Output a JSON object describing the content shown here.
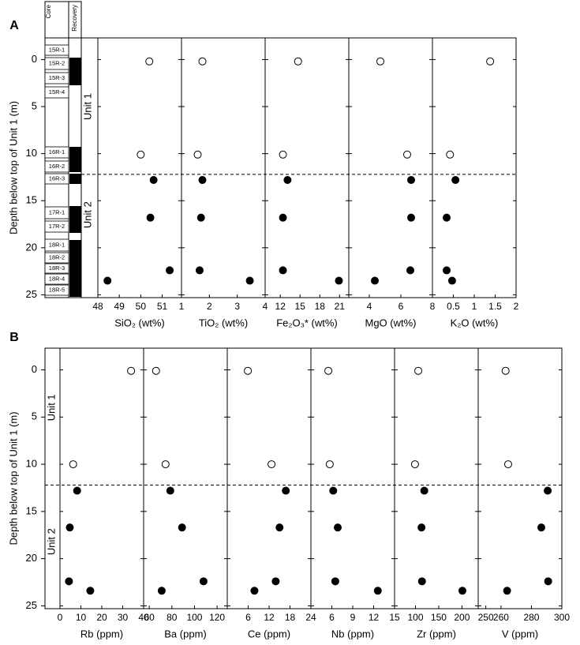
{
  "chart_data": [
    {
      "label": "A",
      "ylabel": "Depth below top of Unit 1 (m)",
      "ylim": [
        25.3,
        -2.3
      ],
      "yticks": [
        0,
        5,
        10,
        15,
        20,
        25
      ],
      "boundary": 12.2,
      "units": [
        "Unit 1",
        "Unit 2"
      ],
      "column_headers": [
        "Core",
        "Recovery"
      ],
      "cores": [
        "15R-1",
        "15R-2",
        "15R-3",
        "15R-4",
        "16R-1",
        "16R-2",
        "16R-3",
        "17R-1",
        "17R-2",
        "18R-1",
        "18R-2",
        "18R-3",
        "18R-4",
        "18R-5"
      ],
      "charts": [
        {
          "type": "scatter",
          "xlabel": "SiO₂ (wt%)",
          "xlim": [
            48,
            51.9
          ],
          "xticks": [
            48,
            49,
            50,
            51
          ],
          "series": [
            {
              "fill": "#ffffff",
              "x": [
                50.4,
                50.0
              ],
              "y": [
                0.2,
                10.1
              ]
            },
            {
              "fill": "#000000",
              "x": [
                50.6,
                50.45,
                51.35,
                48.45
              ],
              "y": [
                12.8,
                16.8,
                22.4,
                23.5
              ]
            }
          ]
        },
        {
          "type": "scatter",
          "xlabel": "TiO₂ (wt%)",
          "xlim": [
            1,
            4
          ],
          "xticks": [
            1,
            2,
            3,
            4
          ],
          "series": [
            {
              "fill": "#ffffff",
              "x": [
                1.75,
                1.58
              ],
              "y": [
                0.2,
                10.1
              ]
            },
            {
              "fill": "#000000",
              "x": [
                1.75,
                1.7,
                1.65,
                3.45
              ],
              "y": [
                12.8,
                16.8,
                22.4,
                23.5
              ]
            }
          ]
        },
        {
          "type": "scatter",
          "xlabel": "Fe₂O₃* (wt%)",
          "xlim": [
            9.7,
            22.4
          ],
          "xticks": [
            12,
            15,
            18,
            21
          ],
          "series": [
            {
              "fill": "#ffffff",
              "x": [
                14.7,
                12.4
              ],
              "y": [
                0.2,
                10.1
              ]
            },
            {
              "fill": "#000000",
              "x": [
                13.1,
                12.4,
                12.4,
                20.9
              ],
              "y": [
                12.8,
                16.8,
                22.4,
                23.5
              ]
            }
          ]
        },
        {
          "type": "scatter",
          "xlabel": "MgO (wt%)",
          "xlim": [
            2.7,
            8
          ],
          "xticks": [
            4,
            6,
            8
          ],
          "series": [
            {
              "fill": "#ffffff",
              "x": [
                4.7,
                6.4
              ],
              "y": [
                0.2,
                10.1
              ]
            },
            {
              "fill": "#000000",
              "x": [
                6.65,
                6.65,
                6.6,
                4.35
              ],
              "y": [
                12.8,
                16.8,
                22.4,
                23.5
              ]
            }
          ]
        },
        {
          "type": "scatter",
          "xlabel": "K₂O (wt%)",
          "xlim": [
            0,
            2
          ],
          "xticks": [
            0.5,
            1,
            1.5,
            2
          ],
          "series": [
            {
              "fill": "#ffffff",
              "x": [
                1.38,
                0.42
              ],
              "y": [
                0.2,
                10.1
              ]
            },
            {
              "fill": "#000000",
              "x": [
                0.55,
                0.34,
                0.34,
                0.47
              ],
              "y": [
                12.8,
                16.8,
                22.4,
                23.5
              ]
            }
          ]
        }
      ]
    },
    {
      "label": "B",
      "ylabel": "Depth below top of Unit 1 (m)",
      "ylim": [
        25.3,
        -2.3
      ],
      "yticks": [
        0,
        5,
        10,
        15,
        20,
        25
      ],
      "boundary": 12.2,
      "units": [
        "Unit 1",
        "Unit 2"
      ],
      "charts": [
        {
          "type": "scatter",
          "xlabel": "Rb (ppm)",
          "xlim": [
            0,
            40
          ],
          "xticks": [
            0,
            10,
            20,
            30,
            40
          ],
          "series": [
            {
              "fill": "#ffffff",
              "x": [
                34,
                6.3
              ],
              "y": [
                0.1,
                10.0
              ]
            },
            {
              "fill": "#000000",
              "x": [
                8.2,
                4.7,
                4.3,
                14.5
              ],
              "y": [
                12.8,
                16.7,
                22.4,
                23.4
              ]
            }
          ]
        },
        {
          "type": "scatter",
          "xlabel": "Ba (ppm)",
          "xlim": [
            55,
            129
          ],
          "xticks": [
            60,
            80,
            100,
            120
          ],
          "series": [
            {
              "fill": "#ffffff",
              "x": [
                66,
                74.4
              ],
              "y": [
                0.1,
                10.0
              ]
            },
            {
              "fill": "#000000",
              "x": [
                78.6,
                89,
                108,
                71
              ],
              "y": [
                12.8,
                16.7,
                22.4,
                23.4
              ]
            }
          ]
        },
        {
          "type": "scatter",
          "xlabel": "Ce (ppm)",
          "xlim": [
            0,
            24
          ],
          "xticks": [
            6,
            12,
            18,
            24
          ],
          "series": [
            {
              "fill": "#ffffff",
              "x": [
                5.9,
                12.7
              ],
              "y": [
                0.1,
                10.0
              ]
            },
            {
              "fill": "#000000",
              "x": [
                16.8,
                15,
                13.9,
                7.8
              ],
              "y": [
                12.8,
                16.7,
                22.4,
                23.4
              ]
            }
          ]
        },
        {
          "type": "scatter",
          "xlabel": "Nb (ppm)",
          "xlim": [
            3,
            15
          ],
          "xticks": [
            6,
            9,
            12,
            15
          ],
          "series": [
            {
              "fill": "#ffffff",
              "x": [
                5.5,
                5.7
              ],
              "y": [
                0.1,
                10.0
              ]
            },
            {
              "fill": "#000000",
              "x": [
                6.2,
                6.85,
                6.5,
                12.6
              ],
              "y": [
                12.8,
                16.7,
                22.4,
                23.4
              ]
            }
          ]
        },
        {
          "type": "scatter",
          "xlabel": "Zr (ppm)",
          "xlim": [
            55,
            235
          ],
          "xticks": [
            100,
            150,
            200
          ],
          "series": [
            {
              "fill": "#ffffff",
              "x": [
                106,
                99
              ],
              "y": [
                0.1,
                10.0
              ]
            },
            {
              "fill": "#000000",
              "x": [
                119,
                113,
                114,
                201
              ],
              "y": [
                12.8,
                16.7,
                22.4,
                23.4
              ]
            }
          ]
        },
        {
          "type": "scatter",
          "xlabel": "V (ppm)",
          "xlim": [
            245,
            300
          ],
          "xticks": [
            250,
            260,
            280,
            300
          ],
          "series": [
            {
              "fill": "#ffffff",
              "x": [
                263,
                264.7
              ],
              "y": [
                0.1,
                10.0
              ]
            },
            {
              "fill": "#000000",
              "x": [
                290.7,
                286.5,
                291,
                264
              ],
              "y": [
                12.8,
                16.7,
                22.4,
                23.4
              ]
            }
          ]
        }
      ]
    }
  ]
}
